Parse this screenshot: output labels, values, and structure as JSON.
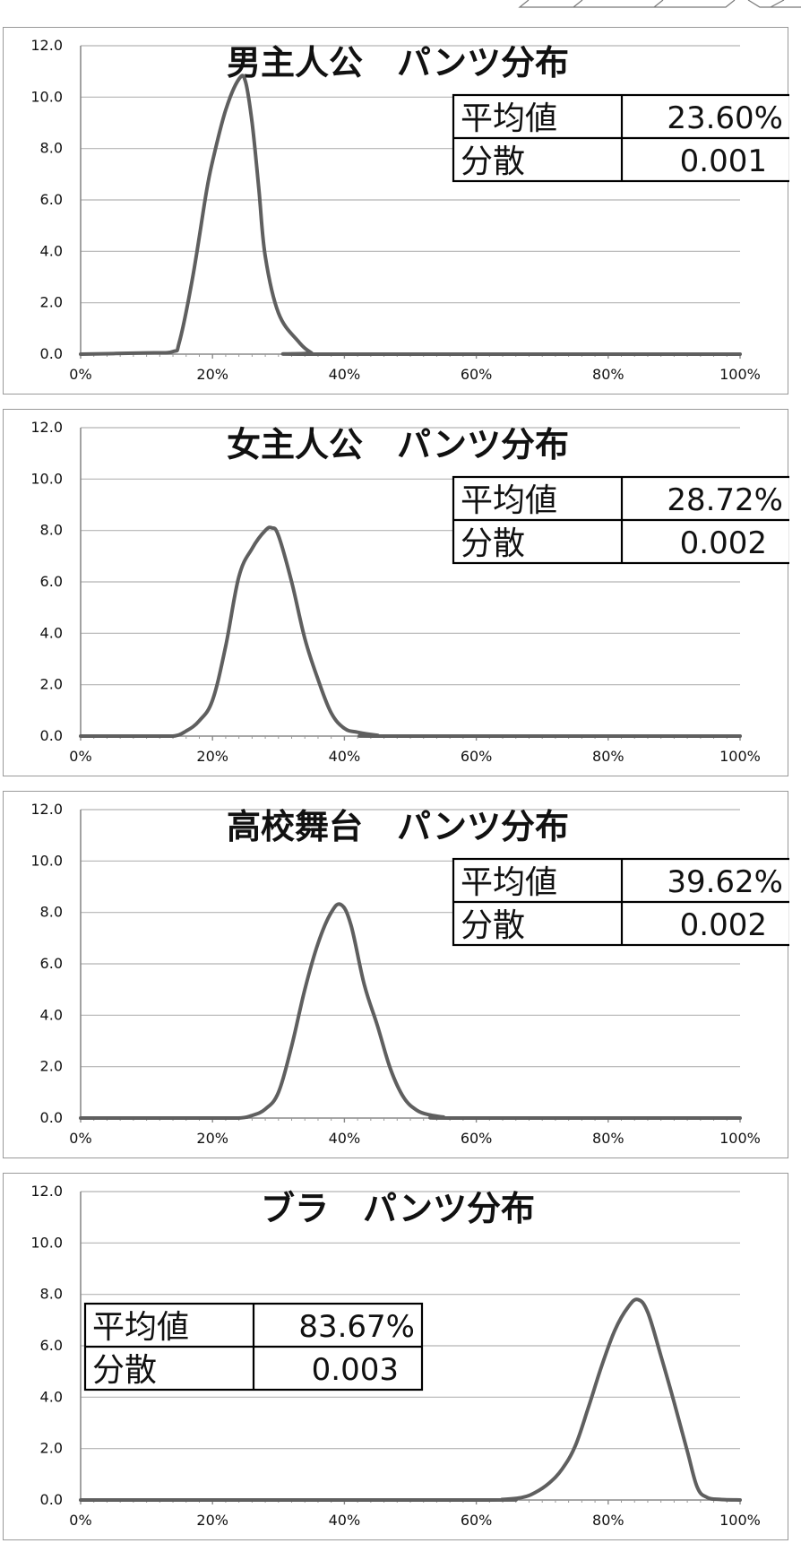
{
  "chart_data": [
    {
      "type": "line",
      "title": "男主人公　パンツ分布",
      "x_tick_labels": [
        "0%",
        "20%",
        "40%",
        "60%",
        "80%",
        "100%"
      ],
      "y_tick_labels": [
        "0.0",
        "2.0",
        "4.0",
        "6.0",
        "8.0",
        "10.0",
        "12.0"
      ],
      "xlim": [
        0,
        100
      ],
      "ylim": [
        0,
        12
      ],
      "grid": true,
      "stats": {
        "mean_label": "平均値",
        "mean_value": "23.60%",
        "var_label": "分散",
        "var_value": "0.001",
        "placement": "top-right"
      },
      "x": [
        0,
        10,
        14,
        15,
        17,
        19,
        20,
        22,
        24,
        25,
        26,
        27,
        28,
        30,
        33,
        35,
        36,
        100
      ],
      "values": [
        0,
        0.05,
        0.1,
        0.5,
        3.0,
        6.2,
        7.5,
        9.5,
        10.7,
        10.6,
        9.0,
        6.5,
        3.8,
        1.6,
        0.5,
        0.05,
        0,
        0
      ]
    },
    {
      "type": "line",
      "title": "女主人公　パンツ分布",
      "x_tick_labels": [
        "0%",
        "20%",
        "40%",
        "60%",
        "80%",
        "100%"
      ],
      "y_tick_labels": [
        "0.0",
        "2.0",
        "4.0",
        "6.0",
        "8.0",
        "10.0",
        "12.0"
      ],
      "xlim": [
        0,
        100
      ],
      "ylim": [
        0,
        12
      ],
      "grid": true,
      "stats": {
        "mean_label": "平均値",
        "mean_value": "28.72%",
        "var_label": "分散",
        "var_value": "0.002",
        "placement": "top-right"
      },
      "x": [
        0,
        10,
        14,
        16,
        18,
        20,
        22,
        24,
        26,
        28,
        29,
        30,
        32,
        34,
        36,
        38,
        40,
        42,
        45,
        47,
        100
      ],
      "values": [
        0,
        0,
        0,
        0.2,
        0.6,
        1.4,
        3.5,
        6.2,
        7.3,
        8.0,
        8.1,
        7.8,
        6.0,
        3.8,
        2.2,
        0.9,
        0.3,
        0.15,
        0.03,
        0,
        0
      ]
    },
    {
      "type": "line",
      "title": "高校舞台　パンツ分布",
      "x_tick_labels": [
        "0%",
        "20%",
        "40%",
        "60%",
        "80%",
        "100%"
      ],
      "y_tick_labels": [
        "0.0",
        "2.0",
        "4.0",
        "6.0",
        "8.0",
        "10.0",
        "12.0"
      ],
      "xlim": [
        0,
        100
      ],
      "ylim": [
        0,
        12
      ],
      "grid": true,
      "stats": {
        "mean_label": "平均値",
        "mean_value": "39.62%",
        "var_label": "分散",
        "var_value": "0.002",
        "placement": "top-right"
      },
      "x": [
        0,
        20,
        24,
        26,
        28,
        30,
        32,
        34,
        36,
        38,
        39.5,
        41,
        43,
        45,
        47,
        49,
        51,
        53,
        55,
        57,
        100
      ],
      "values": [
        0,
        0,
        0,
        0.1,
        0.35,
        1.0,
        2.8,
        5.0,
        6.8,
        8.0,
        8.3,
        7.5,
        5.2,
        3.6,
        1.9,
        0.8,
        0.3,
        0.12,
        0.04,
        0,
        0
      ]
    },
    {
      "type": "line",
      "title": "ブラ　パンツ分布",
      "x_tick_labels": [
        "0%",
        "20%",
        "40%",
        "60%",
        "80%",
        "100%"
      ],
      "y_tick_labels": [
        "0.0",
        "2.0",
        "4.0",
        "6.0",
        "8.0",
        "10.0",
        "12.0"
      ],
      "xlim": [
        0,
        100
      ],
      "ylim": [
        0,
        12
      ],
      "grid": true,
      "stats": {
        "mean_label": "平均値",
        "mean_value": "83.67%",
        "var_label": "分散",
        "var_value": "0.003",
        "placement": "middle-left"
      },
      "x": [
        0,
        60,
        64,
        67,
        69,
        71,
        73,
        75,
        77,
        79,
        81,
        83,
        84.5,
        86,
        88,
        90,
        92,
        93.5,
        95,
        97,
        100
      ],
      "values": [
        0,
        0,
        0.02,
        0.1,
        0.3,
        0.65,
        1.2,
        2.1,
        3.6,
        5.2,
        6.6,
        7.5,
        7.8,
        7.3,
        5.6,
        3.8,
        1.9,
        0.5,
        0.1,
        0.02,
        0
      ]
    }
  ]
}
